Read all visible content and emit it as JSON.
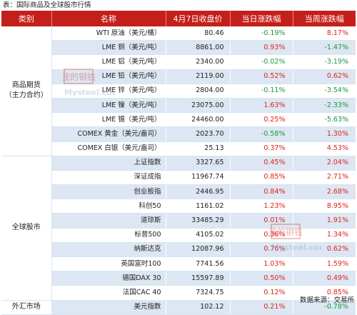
{
  "caption": "表：国际商品及全球股市行情",
  "source": "数据来源：交易所",
  "headers": [
    "类别",
    "名称",
    "4月7日收盘价",
    "当日涨跌幅",
    "当周涨跌幅"
  ],
  "colors": {
    "header_bg": "#c41f1a",
    "stripe": "#dce7f3",
    "up": "#e0231c",
    "down": "#1b9a3a"
  },
  "watermark": {
    "line1": "我的钢铁",
    "line2": "Mysteel.com"
  },
  "groups": [
    {
      "category_line1": "商品期货",
      "category_line2": "（主力合约）",
      "rows": [
        {
          "name": "WTI 原油（美元/桶）",
          "price": "80.46",
          "day": "-0.19%",
          "week": "8.17%"
        },
        {
          "name": "LME 铜（美元/吨）",
          "price": "8861.00",
          "day": "0.93%",
          "week": "-1.47%"
        },
        {
          "name": "LME 铝（美元/吨）",
          "price": "2340.00",
          "day": "-0.02%",
          "week": "-3.19%"
        },
        {
          "name": "LME 铅（美元/吨）",
          "price": "2119.00",
          "day": "0.52%",
          "week": "0.62%"
        },
        {
          "name": "LME 锌（美元/吨）",
          "price": "2804.00",
          "day": "-0.11%",
          "week": "-3.54%"
        },
        {
          "name": "LME 镍（美元/吨）",
          "price": "23075.00",
          "day": "1.63%",
          "week": "-2.33%"
        },
        {
          "name": "LME 锡（美元/吨）",
          "price": "24460.00",
          "day": "0.25%",
          "week": "-5.63%"
        },
        {
          "name": "COMEX 黄金（美元/盎司）",
          "price": "2023.70",
          "day": "-0.58%",
          "week": "1.30%"
        },
        {
          "name": "COMEX 白银（美元/盎司）",
          "price": "25.13",
          "day": "0.37%",
          "week": "4.53%"
        }
      ]
    },
    {
      "category_line1": "全球股市",
      "category_line2": "",
      "rows": [
        {
          "name": "上证指数",
          "price": "3327.65",
          "day": "0.45%",
          "week": "2.04%"
        },
        {
          "name": "深证成指",
          "price": "11967.74",
          "day": "0.85%",
          "week": "2.71%"
        },
        {
          "name": "创业板指",
          "price": "2446.95",
          "day": "0.84%",
          "week": "2.68%"
        },
        {
          "name": "科创50",
          "price": "1161.02",
          "day": "1.23%",
          "week": "8.95%"
        },
        {
          "name": "道琼斯",
          "price": "33485.29",
          "day": "0.01%",
          "week": "1.91%"
        },
        {
          "name": "标普500",
          "price": "4105.02",
          "day": "0.36%",
          "week": "1.34%"
        },
        {
          "name": "纳斯达克",
          "price": "12087.96",
          "day": "0.76%",
          "week": "0.62%"
        },
        {
          "name": "英国富时100",
          "price": "7741.56",
          "day": "1.03%",
          "week": "1.59%"
        },
        {
          "name": "德国DAX 30",
          "price": "15597.89",
          "day": "0.50%",
          "week": "0.49%"
        },
        {
          "name": "法国CAC 40",
          "price": "7324.75",
          "day": "0.12%",
          "week": "0.85%"
        }
      ]
    },
    {
      "category_line1": "外汇市场",
      "category_line2": "",
      "rows": [
        {
          "name": "美元指数",
          "price": "102.12",
          "day": "0.21%",
          "week": "-0.78%"
        }
      ]
    }
  ]
}
